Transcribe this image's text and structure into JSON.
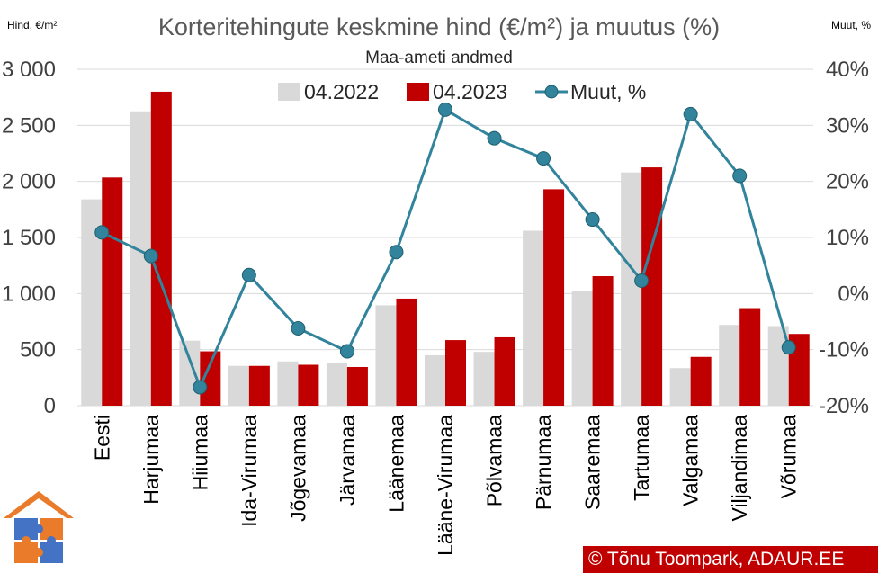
{
  "chart_data": {
    "type": "bar",
    "title": "Korteritehingute keskmine hind (€/m²) ja muutus (%)",
    "subtitle": "Maa-ameti andmed",
    "ylabel": "Hind, €/m²",
    "y2label": "Muut, %",
    "ylim": [
      0,
      3000
    ],
    "y2lim": [
      -20,
      40
    ],
    "yticks": [
      "0",
      "500",
      "1 000",
      "1 500",
      "2 000",
      "2 500",
      "3 000"
    ],
    "y2ticks": [
      "-20%",
      "-10%",
      "0%",
      "10%",
      "20%",
      "30%",
      "40%"
    ],
    "grid": true,
    "legend": "top",
    "categories": [
      "Eesti",
      "Harjumaa",
      "Hiiumaa",
      "Ida-Virumaa",
      "Jõgevamaa",
      "Järvamaa",
      "Läänemaa",
      "Lääne-Virumaa",
      "Põlvamaa",
      "Pärnumaa",
      "Saaremaa",
      "Tartumaa",
      "Valgamaa",
      "Viljandimaa",
      "Võrumaa"
    ],
    "series": [
      {
        "name": "04.2022",
        "type": "bar",
        "color": "#d9d9d9",
        "values": [
          1840,
          2625,
          580,
          355,
          395,
          385,
          895,
          450,
          480,
          1560,
          1020,
          2080,
          335,
          720,
          710
        ]
      },
      {
        "name": "04.2023",
        "type": "bar",
        "color": "#c00000",
        "values": [
          2035,
          2800,
          485,
          355,
          365,
          345,
          955,
          585,
          610,
          1930,
          1155,
          2125,
          435,
          870,
          640
        ]
      },
      {
        "name": "Muut, %",
        "type": "line",
        "axis": "right",
        "color": "#31849b",
        "values": [
          10.9,
          6.7,
          -16.7,
          3.3,
          -6.2,
          -10.3,
          7.4,
          32.8,
          27.7,
          24.1,
          13.2,
          2.3,
          32.0,
          21.0,
          -9.6
        ]
      }
    ]
  },
  "credit": "© Tõnu Toompark, ADAUR.EE"
}
